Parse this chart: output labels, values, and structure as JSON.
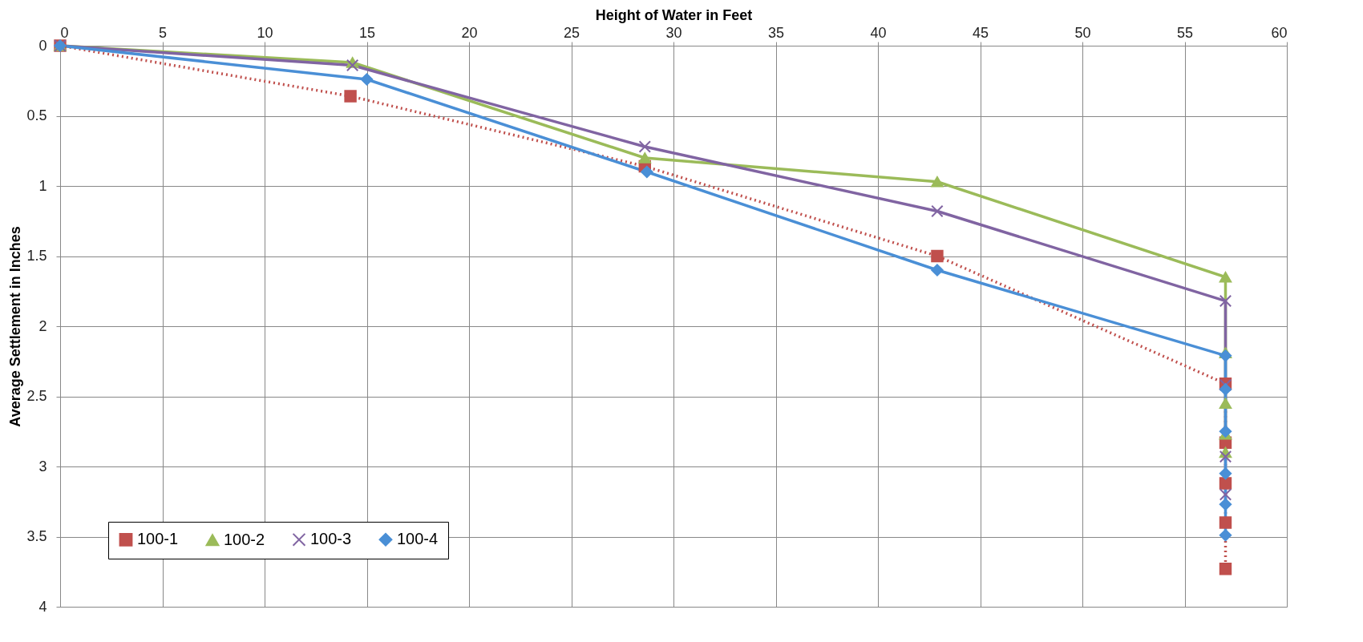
{
  "chart_data": {
    "type": "line",
    "xlabel": "Height of Water in Feet",
    "ylabel": "Average Settlement in Inches",
    "xlim": [
      0,
      60
    ],
    "xticks": [
      0,
      5,
      10,
      15,
      20,
      25,
      30,
      35,
      40,
      45,
      50,
      55,
      60
    ],
    "ylim": [
      4,
      0
    ],
    "yticks": [
      0,
      0.5,
      1,
      1.5,
      2,
      2.5,
      3,
      3.5,
      4
    ],
    "grid": true,
    "legend": "bottom left",
    "series": [
      {
        "name": "100-1",
        "color": "#c0504d",
        "marker": "square",
        "line_style": "dotted",
        "x": [
          0,
          14.2,
          28.6,
          42.9,
          57,
          57,
          57,
          57,
          57
        ],
        "values": [
          0,
          0.36,
          0.86,
          1.5,
          2.41,
          2.83,
          3.12,
          3.4,
          3.73
        ]
      },
      {
        "name": "100-2",
        "color": "#9bbb59",
        "marker": "triangle",
        "line_style": "solid",
        "x": [
          0,
          14.3,
          28.6,
          42.9,
          57,
          57,
          57,
          57,
          57
        ],
        "values": [
          0,
          0.12,
          0.8,
          0.97,
          1.65,
          2.19,
          2.55,
          2.77,
          2.9
        ]
      },
      {
        "name": "100-3",
        "color": "#8064a2",
        "marker": "cross",
        "line_style": "solid",
        "x": [
          0,
          14.3,
          28.6,
          42.9,
          57,
          57,
          57,
          57
        ],
        "values": [
          0,
          0.14,
          0.72,
          1.18,
          1.82,
          2.42,
          2.93,
          3.2
        ]
      },
      {
        "name": "100-4",
        "color": "#4a8fd6",
        "marker": "diamond",
        "line_style": "solid",
        "x": [
          0,
          15,
          28.7,
          42.9,
          57,
          57,
          57,
          57,
          57,
          57
        ],
        "values": [
          0,
          0.24,
          0.9,
          1.6,
          2.21,
          2.45,
          2.75,
          3.05,
          3.27,
          3.49
        ]
      }
    ]
  }
}
